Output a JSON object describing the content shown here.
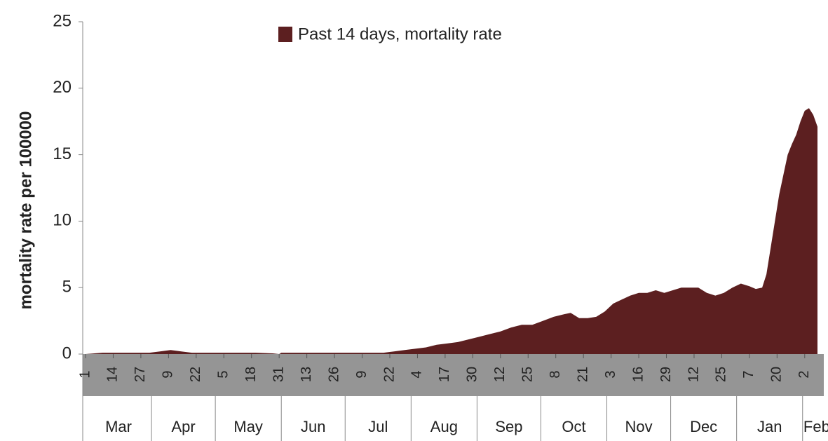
{
  "chart_data": {
    "type": "area",
    "y_label": "mortality rate per 100000",
    "xlim": [
      0,
      344
    ],
    "ylim": [
      0,
      25
    ],
    "yticks": [
      0,
      5,
      10,
      15,
      20,
      25
    ],
    "xticks": [
      {
        "value": 0,
        "label": "1"
      },
      {
        "value": 13,
        "label": "14"
      },
      {
        "value": 26,
        "label": "27"
      },
      {
        "value": 39,
        "label": "9"
      },
      {
        "value": 52,
        "label": "22"
      },
      {
        "value": 65,
        "label": "5"
      },
      {
        "value": 78,
        "label": "18"
      },
      {
        "value": 91,
        "label": "31"
      },
      {
        "value": 104,
        "label": "13"
      },
      {
        "value": 117,
        "label": "26"
      },
      {
        "value": 130,
        "label": "9"
      },
      {
        "value": 143,
        "label": "22"
      },
      {
        "value": 156,
        "label": "4"
      },
      {
        "value": 169,
        "label": "17"
      },
      {
        "value": 182,
        "label": "30"
      },
      {
        "value": 195,
        "label": "12"
      },
      {
        "value": 208,
        "label": "25"
      },
      {
        "value": 221,
        "label": "8"
      },
      {
        "value": 234,
        "label": "21"
      },
      {
        "value": 247,
        "label": "3"
      },
      {
        "value": 260,
        "label": "16"
      },
      {
        "value": 273,
        "label": "29"
      },
      {
        "value": 286,
        "label": "12"
      },
      {
        "value": 299,
        "label": "25"
      },
      {
        "value": 312,
        "label": "7"
      },
      {
        "value": 325,
        "label": "20"
      },
      {
        "value": 338,
        "label": "2"
      }
    ],
    "months": [
      {
        "value": 0,
        "label": "Mar"
      },
      {
        "value": 31,
        "label": "Apr"
      },
      {
        "value": 61,
        "label": "May"
      },
      {
        "value": 92,
        "label": "Jun"
      },
      {
        "value": 122,
        "label": "Jul"
      },
      {
        "value": 153,
        "label": "Aug"
      },
      {
        "value": 184,
        "label": "Sep"
      },
      {
        "value": 214,
        "label": "Oct"
      },
      {
        "value": 245,
        "label": "Nov"
      },
      {
        "value": 275,
        "label": "Dec"
      },
      {
        "value": 306,
        "label": "Jan"
      },
      {
        "value": 337,
        "label": "Feb"
      }
    ],
    "x": [
      0,
      8,
      30,
      35,
      40,
      45,
      50,
      80,
      88,
      91,
      92,
      140,
      145,
      150,
      155,
      160,
      165,
      170,
      175,
      180,
      185,
      190,
      195,
      200,
      205,
      210,
      215,
      220,
      225,
      228,
      232,
      236,
      240,
      244,
      248,
      252,
      256,
      260,
      264,
      268,
      272,
      276,
      280,
      284,
      288,
      292,
      296,
      300,
      304,
      308,
      312,
      315,
      318,
      320,
      322,
      324,
      326,
      328,
      330,
      332,
      334,
      336,
      338,
      340,
      342,
      344
    ],
    "series": [
      {
        "name": "Past 14 days, mortality rate",
        "color": "#5c1f20",
        "values": [
          0,
          0.1,
          0.1,
          0.2,
          0.3,
          0.2,
          0.1,
          0.1,
          0.05,
          0,
          0.1,
          0.1,
          0.2,
          0.3,
          0.4,
          0.5,
          0.7,
          0.8,
          0.9,
          1.1,
          1.3,
          1.5,
          1.7,
          2.0,
          2.2,
          2.2,
          2.5,
          2.8,
          3.0,
          3.1,
          2.7,
          2.7,
          2.8,
          3.2,
          3.8,
          4.1,
          4.4,
          4.6,
          4.6,
          4.8,
          4.6,
          4.8,
          5.0,
          5.0,
          5.0,
          4.6,
          4.4,
          4.6,
          5.0,
          5.3,
          5.1,
          4.9,
          5.0,
          6.0,
          8.0,
          10,
          12,
          13.5,
          15,
          15.8,
          16.5,
          17.5,
          18.3,
          18.5,
          18.0,
          17.1
        ]
      }
    ]
  }
}
